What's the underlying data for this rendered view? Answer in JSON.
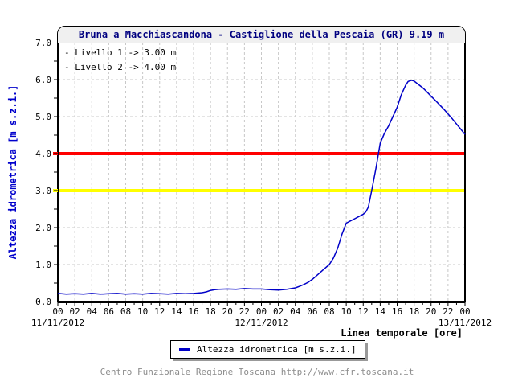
{
  "title": "Bruna a Macchiascandona - Castiglione della Pescaia (GR) 9.19 m",
  "annotations": {
    "level1": "- Livello 1 -> 3.00 m",
    "level2": "- Livello 2 -> 4.00 m"
  },
  "y_axis": {
    "label": "Altezza idrometrica [m s.z.i.]",
    "tick_labels": [
      "7.0",
      "6.0",
      "5.0",
      "4.0",
      "3.0",
      "2.0",
      "1.0",
      "0.0"
    ]
  },
  "x_axis": {
    "label": "Linea temporale [ore]",
    "hour_labels": [
      "00",
      "02",
      "04",
      "06",
      "08",
      "10",
      "12",
      "14",
      "16",
      "18",
      "20",
      "22",
      "00",
      "02",
      "04",
      "06",
      "08",
      "10",
      "12",
      "14",
      "16",
      "18",
      "20",
      "22",
      "00"
    ],
    "date_labels": [
      "11/11/2012",
      "12/11/2012",
      "13/11/2012"
    ]
  },
  "legend": {
    "series_label": "Altezza idrometrica [m s.z.i.]"
  },
  "footer": "Centro Funzionale Regione Toscana http://www.cfr.toscana.it",
  "colors": {
    "title_text": "#000080",
    "axis_label_blue": "#0000cc",
    "series_blue": "#0000c8",
    "threshold_level1_yellow": "#ffff00",
    "threshold_level2_red": "#ff0000",
    "grid_gray": "#c8c8c8",
    "title_band_bg": "#f0f0f0",
    "footer_gray": "#8c8c8c"
  },
  "chart_data": {
    "type": "line",
    "title": "Bruna a Macchiascandona - Castiglione della Pescaia (GR) 9.19 m",
    "xlabel": "Linea temporale [ore]",
    "ylabel": "Altezza idrometrica [m s.z.i.]",
    "x_unit": "hours from 11/11/2012 00:00",
    "x_range_hours": [
      0,
      48
    ],
    "x_tick_step_hours": 2,
    "x_dates": [
      "11/11/2012",
      "12/11/2012",
      "13/11/2012"
    ],
    "ylim": [
      0,
      7
    ],
    "y_tick_step": 1.0,
    "grid": true,
    "legend_position": "bottom",
    "thresholds": [
      {
        "label": "Livello 1",
        "value": 3.0,
        "color": "#ffff00"
      },
      {
        "label": "Livello 2",
        "value": 4.0,
        "color": "#ff0000"
      }
    ],
    "series": [
      {
        "name": "Altezza idrometrica [m s.z.i.]",
        "color": "#0000c8",
        "points": [
          [
            0,
            0.22
          ],
          [
            1,
            0.2
          ],
          [
            2,
            0.21
          ],
          [
            3,
            0.2
          ],
          [
            4,
            0.22
          ],
          [
            5,
            0.2
          ],
          [
            6,
            0.21
          ],
          [
            7,
            0.22
          ],
          [
            8,
            0.2
          ],
          [
            9,
            0.21
          ],
          [
            10,
            0.2
          ],
          [
            11,
            0.22
          ],
          [
            12,
            0.21
          ],
          [
            13,
            0.2
          ],
          [
            14,
            0.22
          ],
          [
            15,
            0.21
          ],
          [
            16,
            0.22
          ],
          [
            17,
            0.24
          ],
          [
            17.5,
            0.26
          ],
          [
            18,
            0.3
          ],
          [
            18.5,
            0.32
          ],
          [
            19,
            0.33
          ],
          [
            20,
            0.34
          ],
          [
            21,
            0.33
          ],
          [
            22,
            0.35
          ],
          [
            23,
            0.34
          ],
          [
            24,
            0.34
          ],
          [
            25,
            0.32
          ],
          [
            26,
            0.31
          ],
          [
            27,
            0.33
          ],
          [
            28,
            0.37
          ],
          [
            28.5,
            0.41
          ],
          [
            29,
            0.46
          ],
          [
            29.5,
            0.52
          ],
          [
            30,
            0.6
          ],
          [
            30.5,
            0.7
          ],
          [
            31,
            0.8
          ],
          [
            31.5,
            0.9
          ],
          [
            32,
            1.0
          ],
          [
            32.5,
            1.18
          ],
          [
            33,
            1.45
          ],
          [
            33.5,
            1.82
          ],
          [
            34,
            2.12
          ],
          [
            34.5,
            2.18
          ],
          [
            35,
            2.24
          ],
          [
            35.5,
            2.3
          ],
          [
            36,
            2.36
          ],
          [
            36.3,
            2.42
          ],
          [
            36.6,
            2.55
          ],
          [
            37,
            3.0
          ],
          [
            37.5,
            3.6
          ],
          [
            38,
            4.28
          ],
          [
            38.5,
            4.55
          ],
          [
            39,
            4.75
          ],
          [
            39.5,
            5.0
          ],
          [
            40,
            5.25
          ],
          [
            40.5,
            5.6
          ],
          [
            41,
            5.85
          ],
          [
            41.3,
            5.95
          ],
          [
            41.7,
            5.98
          ],
          [
            42,
            5.96
          ],
          [
            42.5,
            5.87
          ],
          [
            43,
            5.78
          ],
          [
            43.5,
            5.67
          ],
          [
            44,
            5.55
          ],
          [
            44.5,
            5.44
          ],
          [
            45,
            5.32
          ],
          [
            45.5,
            5.2
          ],
          [
            46,
            5.07
          ],
          [
            46.5,
            4.94
          ],
          [
            47,
            4.8
          ],
          [
            47.5,
            4.66
          ],
          [
            48,
            4.52
          ]
        ]
      }
    ]
  }
}
